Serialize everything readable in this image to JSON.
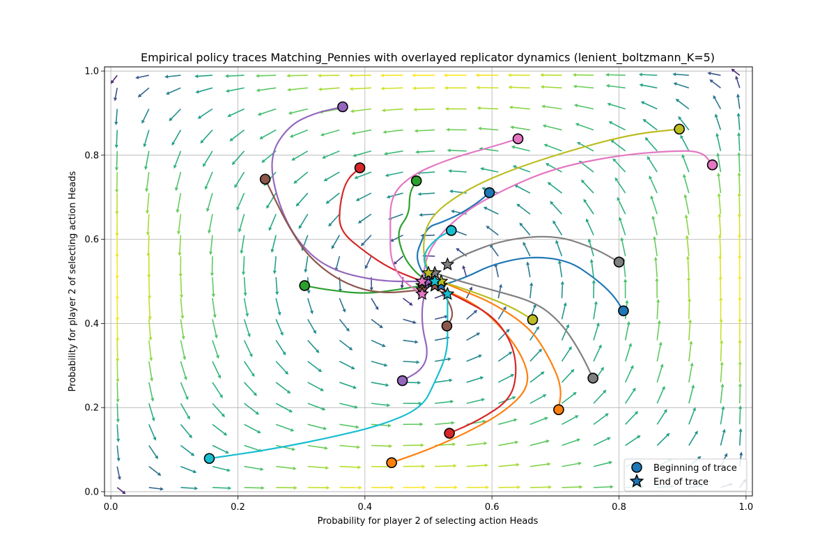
{
  "chart_data": {
    "type": "line",
    "title": "Empirical policy traces Matching_Pennies with overlayed replicator dynamics (lenient_boltzmann_K=5)",
    "xlabel": "Probability for player 2 of selecting action Heads",
    "ylabel": "Probability for player 2 of selecting action Heads",
    "xlim": [
      -0.01,
      1.01
    ],
    "ylim": [
      -0.01,
      1.01
    ],
    "xticks": [
      0.0,
      0.2,
      0.4,
      0.6,
      0.8,
      1.0
    ],
    "yticks": [
      0.0,
      0.2,
      0.4,
      0.6,
      0.8,
      1.0
    ],
    "xtick_labels": [
      "0.0",
      "0.2",
      "0.4",
      "0.6",
      "0.8",
      "1.0"
    ],
    "ytick_labels": [
      "0.0",
      "0.2",
      "0.4",
      "0.6",
      "0.8",
      "1.0"
    ],
    "grid": true,
    "legend_position": "lower-right",
    "legend": [
      {
        "label": "Beginning of trace",
        "marker": "circle",
        "color": "#1f77b4"
      },
      {
        "label": "End of trace",
        "marker": "star",
        "color": "#1f77b4"
      }
    ],
    "quiver": {
      "grid_x": [
        0.01,
        0.06,
        0.11,
        0.16,
        0.21,
        0.26,
        0.31,
        0.36,
        0.41,
        0.46,
        0.51,
        0.56,
        0.61,
        0.66,
        0.71,
        0.76,
        0.81,
        0.86,
        0.91,
        0.96,
        0.99
      ],
      "grid_y": [
        0.01,
        0.06,
        0.11,
        0.16,
        0.21,
        0.26,
        0.31,
        0.36,
        0.41,
        0.46,
        0.51,
        0.56,
        0.61,
        0.66,
        0.71,
        0.76,
        0.81,
        0.86,
        0.91,
        0.96,
        0.99
      ],
      "center": [
        0.5,
        0.5
      ],
      "colormap": "viridis"
    },
    "series": [
      {
        "color": "#1f77b4",
        "start": [
          0.596,
          0.711
        ],
        "end": [
          0.505,
          0.497
        ],
        "points": [
          [
            0.596,
            0.711
          ],
          [
            0.58,
            0.69
          ],
          [
            0.55,
            0.66
          ],
          [
            0.52,
            0.64
          ],
          [
            0.5,
            0.63
          ],
          [
            0.49,
            0.6
          ],
          [
            0.48,
            0.56
          ],
          [
            0.49,
            0.52
          ],
          [
            0.505,
            0.497
          ]
        ]
      },
      {
        "color": "#1f77b4",
        "start": [
          0.807,
          0.43
        ],
        "end": [
          0.52,
          0.49
        ],
        "points": [
          [
            0.807,
            0.43
          ],
          [
            0.79,
            0.47
          ],
          [
            0.76,
            0.51
          ],
          [
            0.72,
            0.55
          ],
          [
            0.66,
            0.56
          ],
          [
            0.6,
            0.54
          ],
          [
            0.56,
            0.51
          ],
          [
            0.52,
            0.49
          ]
        ]
      },
      {
        "color": "#ff7f0e",
        "start": [
          0.442,
          0.069
        ],
        "end": [
          0.51,
          0.49
        ],
        "points": [
          [
            0.442,
            0.069
          ],
          [
            0.5,
            0.1
          ],
          [
            0.56,
            0.14
          ],
          [
            0.62,
            0.19
          ],
          [
            0.66,
            0.25
          ],
          [
            0.65,
            0.32
          ],
          [
            0.61,
            0.4
          ],
          [
            0.57,
            0.45
          ],
          [
            0.51,
            0.49
          ]
        ]
      },
      {
        "color": "#ff7f0e",
        "start": [
          0.705,
          0.195
        ],
        "end": [
          0.52,
          0.5
        ],
        "points": [
          [
            0.705,
            0.195
          ],
          [
            0.71,
            0.25
          ],
          [
            0.69,
            0.32
          ],
          [
            0.66,
            0.39
          ],
          [
            0.6,
            0.45
          ],
          [
            0.55,
            0.48
          ],
          [
            0.52,
            0.5
          ]
        ]
      },
      {
        "color": "#2ca02c",
        "start": [
          0.305,
          0.49
        ],
        "end": [
          0.49,
          0.49
        ],
        "points": [
          [
            0.305,
            0.49
          ],
          [
            0.34,
            0.48
          ],
          [
            0.4,
            0.47
          ],
          [
            0.45,
            0.48
          ],
          [
            0.49,
            0.49
          ]
        ]
      },
      {
        "color": "#2ca02c",
        "start": [
          0.481,
          0.739
        ],
        "end": [
          0.5,
          0.5
        ],
        "points": [
          [
            0.481,
            0.739
          ],
          [
            0.47,
            0.71
          ],
          [
            0.47,
            0.66
          ],
          [
            0.45,
            0.62
          ],
          [
            0.46,
            0.56
          ],
          [
            0.48,
            0.52
          ],
          [
            0.5,
            0.5
          ]
        ]
      },
      {
        "color": "#d62728",
        "start": [
          0.392,
          0.77
        ],
        "end": [
          0.49,
          0.5
        ],
        "points": [
          [
            0.392,
            0.77
          ],
          [
            0.37,
            0.74
          ],
          [
            0.36,
            0.68
          ],
          [
            0.36,
            0.62
          ],
          [
            0.4,
            0.57
          ],
          [
            0.44,
            0.53
          ],
          [
            0.49,
            0.5
          ]
        ]
      },
      {
        "color": "#d62728",
        "start": [
          0.533,
          0.139
        ],
        "end": [
          0.51,
          0.49
        ],
        "points": [
          [
            0.533,
            0.139
          ],
          [
            0.58,
            0.17
          ],
          [
            0.63,
            0.22
          ],
          [
            0.64,
            0.29
          ],
          [
            0.63,
            0.36
          ],
          [
            0.6,
            0.42
          ],
          [
            0.55,
            0.46
          ],
          [
            0.51,
            0.49
          ]
        ]
      },
      {
        "color": "#9467bd",
        "start": [
          0.365,
          0.915
        ],
        "end": [
          0.49,
          0.5
        ],
        "points": [
          [
            0.365,
            0.915
          ],
          [
            0.32,
            0.9
          ],
          [
            0.28,
            0.87
          ],
          [
            0.25,
            0.8
          ],
          [
            0.26,
            0.7
          ],
          [
            0.29,
            0.6
          ],
          [
            0.34,
            0.53
          ],
          [
            0.42,
            0.5
          ],
          [
            0.49,
            0.5
          ]
        ]
      },
      {
        "color": "#9467bd",
        "start": [
          0.459,
          0.264
        ],
        "end": [
          0.5,
          0.5
        ],
        "points": [
          [
            0.459,
            0.264
          ],
          [
            0.49,
            0.29
          ],
          [
            0.5,
            0.33
          ],
          [
            0.49,
            0.39
          ],
          [
            0.49,
            0.45
          ],
          [
            0.5,
            0.5
          ]
        ]
      },
      {
        "color": "#8c564b",
        "start": [
          0.243,
          0.743
        ],
        "end": [
          0.49,
          0.48
        ],
        "points": [
          [
            0.243,
            0.743
          ],
          [
            0.26,
            0.69
          ],
          [
            0.28,
            0.63
          ],
          [
            0.31,
            0.56
          ],
          [
            0.36,
            0.5
          ],
          [
            0.42,
            0.47
          ],
          [
            0.49,
            0.48
          ]
        ]
      },
      {
        "color": "#8c564b",
        "start": [
          0.529,
          0.394
        ],
        "end": [
          0.51,
          0.49
        ],
        "points": [
          [
            0.529,
            0.394
          ],
          [
            0.54,
            0.42
          ],
          [
            0.53,
            0.46
          ],
          [
            0.51,
            0.49
          ]
        ]
      },
      {
        "color": "#e377c2",
        "start": [
          0.641,
          0.839
        ],
        "end": [
          0.49,
          0.47
        ],
        "points": [
          [
            0.641,
            0.839
          ],
          [
            0.6,
            0.82
          ],
          [
            0.53,
            0.79
          ],
          [
            0.47,
            0.75
          ],
          [
            0.44,
            0.7
          ],
          [
            0.44,
            0.62
          ],
          [
            0.44,
            0.55
          ],
          [
            0.46,
            0.5
          ],
          [
            0.49,
            0.47
          ]
        ]
      },
      {
        "color": "#e377c2",
        "start": [
          0.947,
          0.777
        ],
        "end": [
          0.49,
          0.5
        ],
        "points": [
          [
            0.947,
            0.777
          ],
          [
            0.93,
            0.81
          ],
          [
            0.88,
            0.81
          ],
          [
            0.8,
            0.8
          ],
          [
            0.7,
            0.77
          ],
          [
            0.62,
            0.72
          ],
          [
            0.55,
            0.66
          ],
          [
            0.5,
            0.58
          ],
          [
            0.49,
            0.5
          ]
        ]
      },
      {
        "color": "#7f7f7f",
        "start": [
          0.759,
          0.27
        ],
        "end": [
          0.51,
          0.52
        ],
        "points": [
          [
            0.759,
            0.27
          ],
          [
            0.74,
            0.33
          ],
          [
            0.71,
            0.4
          ],
          [
            0.67,
            0.45
          ],
          [
            0.6,
            0.48
          ],
          [
            0.55,
            0.5
          ],
          [
            0.51,
            0.52
          ]
        ]
      },
      {
        "color": "#7f7f7f",
        "start": [
          0.8,
          0.546
        ],
        "end": [
          0.53,
          0.54
        ],
        "points": [
          [
            0.8,
            0.546
          ],
          [
            0.76,
            0.58
          ],
          [
            0.7,
            0.61
          ],
          [
            0.62,
            0.6
          ],
          [
            0.55,
            0.56
          ],
          [
            0.53,
            0.54
          ]
        ]
      },
      {
        "color": "#bcbd22",
        "start": [
          0.895,
          0.862
        ],
        "end": [
          0.5,
          0.52
        ],
        "points": [
          [
            0.895,
            0.862
          ],
          [
            0.82,
            0.85
          ],
          [
            0.72,
            0.81
          ],
          [
            0.62,
            0.76
          ],
          [
            0.55,
            0.71
          ],
          [
            0.5,
            0.65
          ],
          [
            0.49,
            0.58
          ],
          [
            0.5,
            0.52
          ]
        ]
      },
      {
        "color": "#bcbd22",
        "start": [
          0.664,
          0.409
        ],
        "end": [
          0.52,
          0.5
        ],
        "points": [
          [
            0.664,
            0.409
          ],
          [
            0.63,
            0.44
          ],
          [
            0.58,
            0.47
          ],
          [
            0.52,
            0.5
          ]
        ]
      },
      {
        "color": "#17becf",
        "start": [
          0.536,
          0.621
        ],
        "end": [
          0.51,
          0.5
        ],
        "points": [
          [
            0.536,
            0.621
          ],
          [
            0.51,
            0.6
          ],
          [
            0.49,
            0.56
          ],
          [
            0.5,
            0.52
          ],
          [
            0.51,
            0.5
          ]
        ]
      },
      {
        "color": "#17becf",
        "start": [
          0.155,
          0.079
        ],
        "end": [
          0.53,
          0.47
        ],
        "points": [
          [
            0.155,
            0.079
          ],
          [
            0.25,
            0.1
          ],
          [
            0.35,
            0.13
          ],
          [
            0.43,
            0.16
          ],
          [
            0.49,
            0.2
          ],
          [
            0.51,
            0.26
          ],
          [
            0.53,
            0.33
          ],
          [
            0.53,
            0.4
          ],
          [
            0.53,
            0.47
          ]
        ]
      }
    ]
  }
}
